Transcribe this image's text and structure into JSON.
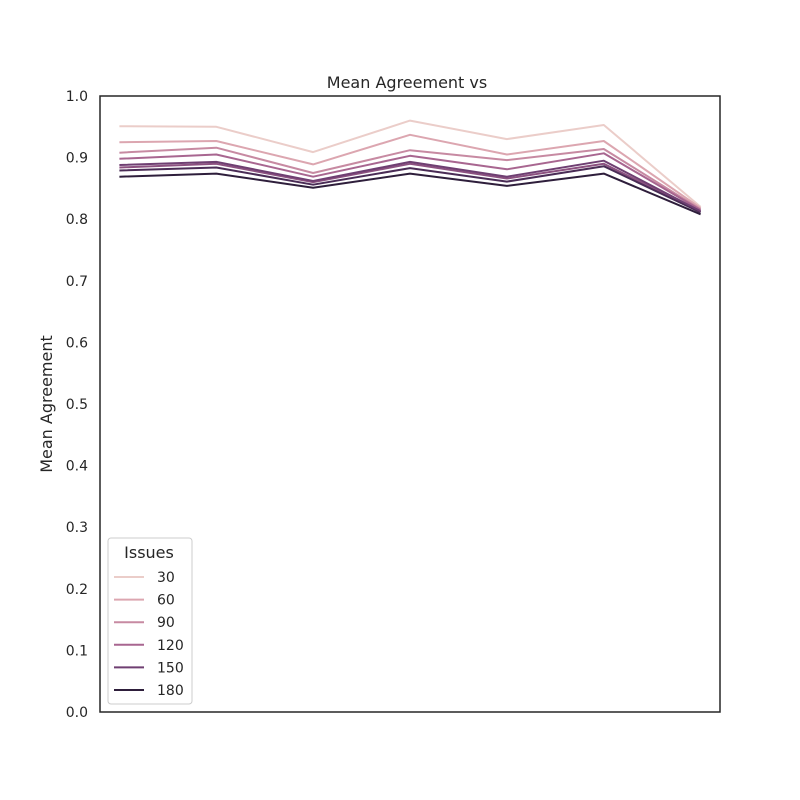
{
  "chart_data": {
    "type": "line",
    "title": "Mean Agreement vs",
    "xlabel": "",
    "ylabel": "Mean Agreement",
    "ylim": [
      0.0,
      1.0
    ],
    "yticks": [
      "0.0",
      "0.1",
      "0.2",
      "0.3",
      "0.4",
      "0.5",
      "0.6",
      "0.7",
      "0.8",
      "0.9",
      "1.0"
    ],
    "x": [
      1,
      2,
      3,
      4,
      5,
      6,
      7
    ],
    "xlim": [
      0.8,
      7.2
    ],
    "grid": false,
    "legend": {
      "title": "Issues",
      "placement": "lower-left"
    },
    "series": [
      {
        "name": "30",
        "color": "#ebcdc9",
        "values": [
          0.951,
          0.95,
          0.909,
          0.96,
          0.93,
          0.953,
          0.82
        ]
      },
      {
        "name": "60",
        "color": "#dca6b0",
        "values": [
          0.925,
          0.927,
          0.889,
          0.937,
          0.905,
          0.927,
          0.818
        ]
      },
      {
        "name": "90",
        "color": "#c78aa2",
        "values": [
          0.908,
          0.916,
          0.875,
          0.912,
          0.896,
          0.914,
          0.816
        ]
      },
      {
        "name": "120",
        "color": "#a86690",
        "values": [
          0.898,
          0.905,
          0.869,
          0.903,
          0.881,
          0.907,
          0.815
        ]
      },
      {
        "name": "150",
        "color": "#6f3f72",
        "values": [
          0.888,
          0.893,
          0.862,
          0.893,
          0.869,
          0.895,
          0.813
        ]
      },
      {
        "name": "180",
        "color": "#2e1e3b",
        "values": [
          0.869,
          0.874,
          0.851,
          0.874,
          0.854,
          0.874,
          0.808
        ]
      }
    ],
    "extra_series": [
      {
        "color": "#8c5180",
        "values": [
          0.884,
          0.89,
          0.86,
          0.89,
          0.866,
          0.89,
          0.812
        ]
      },
      {
        "color": "#4a2c56",
        "values": [
          0.879,
          0.884,
          0.856,
          0.883,
          0.861,
          0.886,
          0.811
        ]
      }
    ]
  }
}
